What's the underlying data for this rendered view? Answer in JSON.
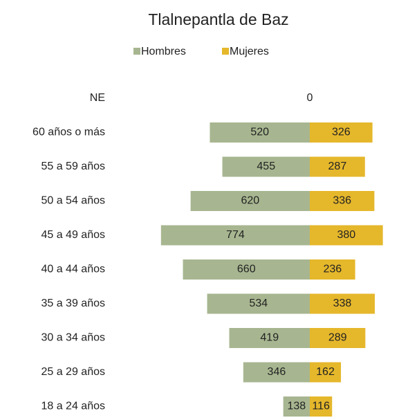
{
  "chart_data": {
    "type": "bar",
    "orientation": "pyramid",
    "title": "Tlalnepantla  de Baz",
    "categories": [
      "NE",
      "60 años o más",
      "55 a 59 años",
      "50 a 54 años",
      "45 a 49 años",
      "40 a 44 años",
      "35 a 39 años",
      "30 a 34 años",
      "25 a 29 años",
      "18 a 24 años"
    ],
    "series": [
      {
        "name": "Hombres",
        "color": "#a7b690",
        "values": [
          null,
          520,
          455,
          620,
          774,
          660,
          534,
          419,
          346,
          138
        ]
      },
      {
        "name": "Mujeres",
        "color": "#e5b72b",
        "values": [
          0,
          326,
          287,
          336,
          380,
          236,
          338,
          289,
          162,
          116
        ]
      }
    ],
    "legend": "top"
  }
}
